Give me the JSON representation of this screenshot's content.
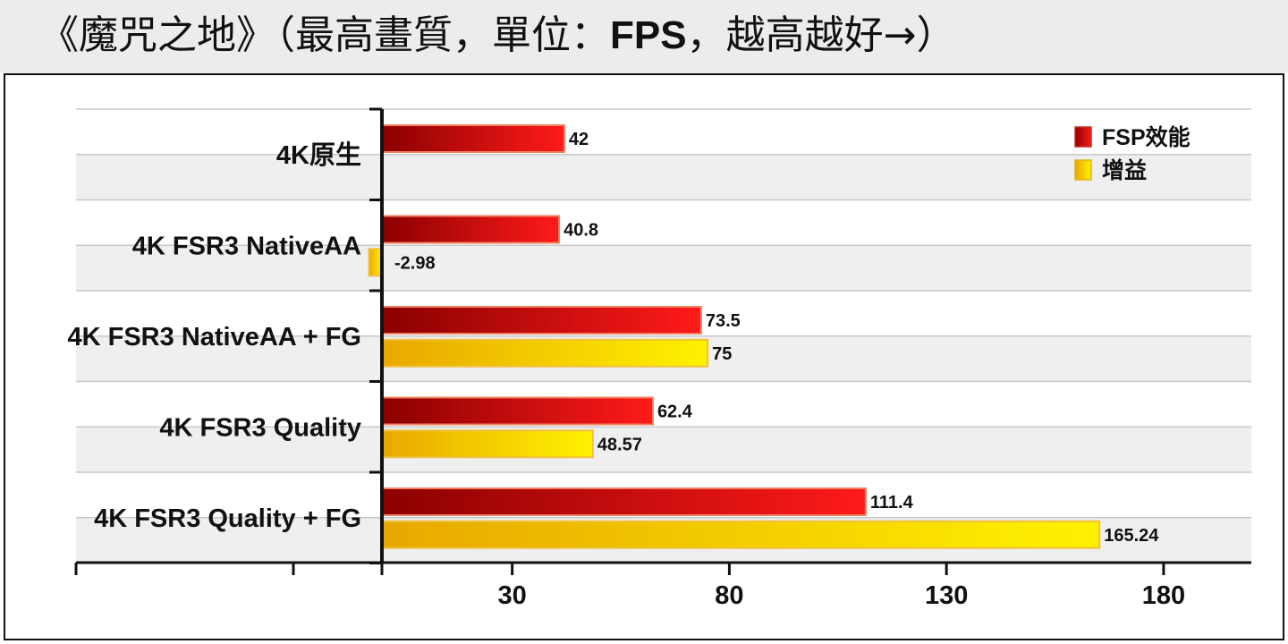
{
  "title": {
    "prefix": "《魔咒之地》（最高畫質，單位：",
    "bold": "FPS",
    "suffix": "，越高越好→）"
  },
  "colors": {
    "performance_dark": "#8b0000",
    "performance_light": "#ff1a1a",
    "gain_dark": "#e8a800",
    "gain_light": "#fff200",
    "band": "#efefef",
    "grid": "#c8c8c8"
  },
  "chart_data": {
    "type": "bar",
    "orientation": "horizontal",
    "categories": [
      "4K原生",
      "4K FSR3 NativeAA",
      "4K FSR3 NativeAA + FG",
      "4K FSR3 Quality",
      "4K FSR3 Quality + FG"
    ],
    "series": [
      {
        "name": "FSP效能",
        "values": [
          42,
          40.8,
          73.5,
          62.4,
          111.4
        ],
        "labels": [
          "42",
          "40.8",
          "73.5",
          "62.4",
          "111.4"
        ]
      },
      {
        "name": "增益",
        "values": [
          null,
          -2.98,
          75,
          48.57,
          165.24
        ],
        "labels": [
          null,
          "-2.98",
          "75",
          "48.57",
          "165.24"
        ]
      }
    ],
    "x_ticks": [
      30,
      80,
      130,
      180
    ],
    "xlim": [
      -40,
      200
    ],
    "legend_position": "top-right",
    "grid": true
  }
}
